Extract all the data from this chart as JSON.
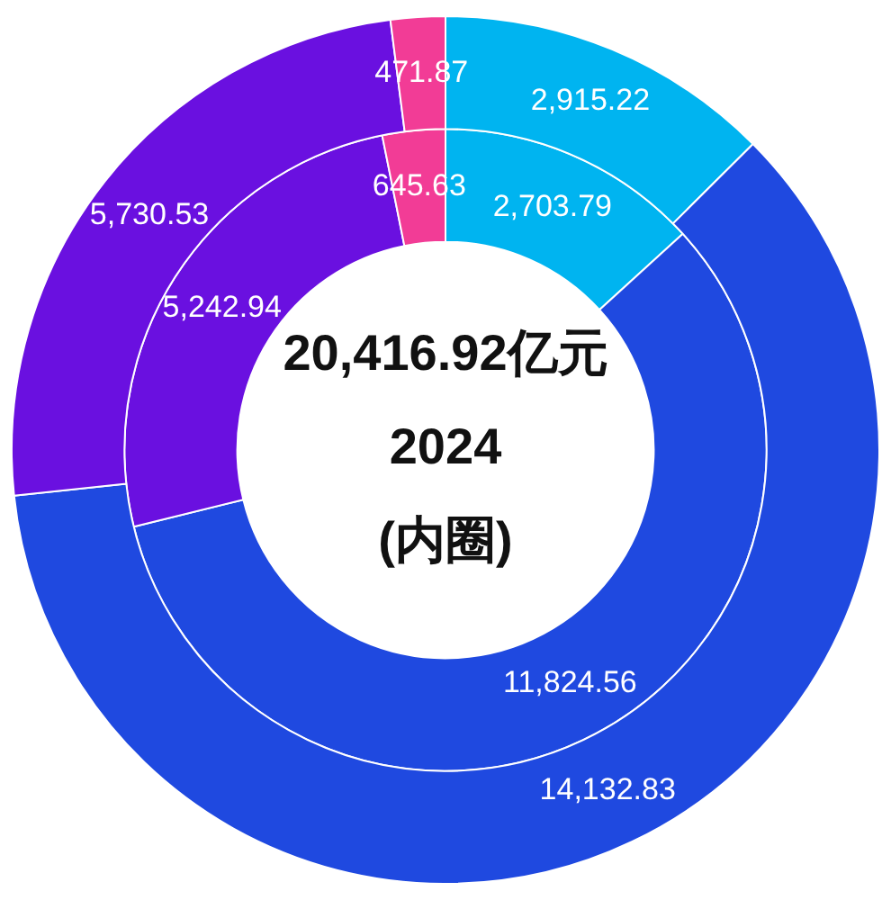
{
  "chart_data": {
    "type": "donut",
    "categories": [
      null,
      null,
      null,
      null
    ],
    "series": [
      {
        "values": [
          2915.22,
          14132.83,
          5730.53,
          471.87
        ],
        "value_labels": [
          "2,915.22",
          "14,132.83",
          "5,730.53",
          "471.87"
        ],
        "colors": [
          "#00b4f0",
          "#1f49e0",
          "#6a10e0",
          "#f23c96"
        ]
      },
      {
        "values": [
          2703.79,
          11824.56,
          5242.94,
          645.63
        ],
        "value_labels": [
          "2,703.79",
          "11,824.56",
          "5,242.94",
          "645.63"
        ],
        "colors": [
          "#00b4f0",
          "#1f49e0",
          "#6a10e0",
          "#f23c96"
        ]
      }
    ],
    "annotations": [
      "20,416.92亿元",
      "2024",
      "(内圈)"
    ]
  }
}
